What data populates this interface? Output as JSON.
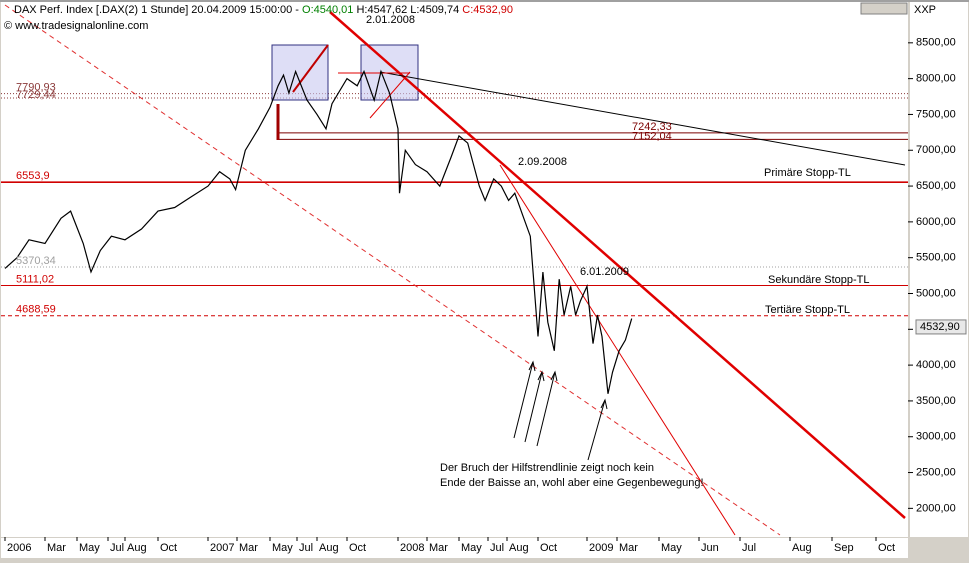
{
  "chart_data": {
    "type": "line",
    "header": {
      "title": "DAX Perf. Index [.DAX(2)  1 Stunde] 20.04.2009 15:00:00 -",
      "open": "O:4540,01",
      "high": "H:4547,62",
      "low": "L:4509,74",
      "close": "C:4532,90"
    },
    "source": "© www.tradesignalonline.com",
    "axis_name": "XXP",
    "last": {
      "value": 4532.9,
      "label": "4532,90"
    },
    "color": "#000000",
    "x": [
      0,
      0.6,
      1.2,
      2,
      3,
      3.6,
      4.4,
      4.9,
      5.5,
      6.2,
      7,
      8,
      9,
      10,
      11,
      12,
      12.8,
      13.5,
      13.9,
      14.5,
      15.3,
      16,
      16.6,
      17,
      17.4,
      17.9,
      18.5,
      19,
      19.6,
      20,
      21,
      21.6,
      22,
      22.6,
      23,
      23.5,
      24,
      24.1,
      24.5,
      25.2,
      26,
      26.8,
      27.5,
      28,
      28.6,
      29,
      29.4,
      29.8,
      30.3,
      30.7,
      31.1,
      31.5,
      32,
      32.5,
      33,
      33.3,
      33.6,
      34,
      34.3,
      34.6,
      35,
      35.3,
      35.6,
      36,
      36.4,
      36.7,
      37,
      37.4,
      37.7,
      38.1,
      38.4,
      38.7
    ],
    "values": [
      5350,
      5500,
      5750,
      5700,
      6050,
      6150,
      5700,
      5300,
      5600,
      5800,
      5750,
      5900,
      6150,
      6200,
      6350,
      6500,
      6700,
      6600,
      6450,
      7000,
      7300,
      7600,
      7900,
      8050,
      7800,
      8100,
      7700,
      7500,
      7300,
      7650,
      8000,
      7900,
      8100,
      7700,
      8100,
      7800,
      7300,
      6400,
      7000,
      6800,
      6700,
      6500,
      6900,
      7200,
      7100,
      6800,
      6500,
      6300,
      6600,
      6500,
      6300,
      6400,
      6100,
      5800,
      4400,
      5300,
      4600,
      4200,
      5200,
      4700,
      5100,
      4700,
      4900,
      5100,
      4300,
      4700,
      4400,
      3600,
      3900,
      4200,
      4350,
      4650
    ],
    "xlim": [
      0,
      46
    ],
    "xticks": [
      {
        "value": 0,
        "label": "2006"
      },
      {
        "value": 2,
        "label": "Mar"
      },
      {
        "value": 4,
        "label": "May"
      },
      {
        "value": 6,
        "label": "Jul"
      },
      {
        "value": 7,
        "label": "Aug"
      },
      {
        "value": 9,
        "label": "Oct"
      },
      {
        "value": 12,
        "label": "2007"
      },
      {
        "value": 14,
        "label": "Mar"
      },
      {
        "value": 16,
        "label": "May"
      },
      {
        "value": 18,
        "label": "Jul"
      },
      {
        "value": 19,
        "label": "Aug"
      },
      {
        "value": 21,
        "label": "Oct"
      },
      {
        "value": 24,
        "label": "2008"
      },
      {
        "value": 26,
        "label": "Mar"
      },
      {
        "value": 28,
        "label": "May"
      },
      {
        "value": 30,
        "label": "Jul"
      },
      {
        "value": 31,
        "label": "Aug"
      },
      {
        "value": 33,
        "label": "Oct"
      },
      {
        "value": 36,
        "label": "2009"
      },
      {
        "value": 38,
        "label": "Mar"
      },
      {
        "value": 40,
        "label": "May"
      },
      {
        "value": 41,
        "label": "Jun"
      },
      {
        "value": 42,
        "label": "Jul"
      },
      {
        "value": 43,
        "label": "Aug"
      },
      {
        "value": 44,
        "label": "Sep"
      },
      {
        "value": 45,
        "label": "Oct"
      }
    ],
    "ylim": [
      1600,
      9070
    ],
    "yticks": [
      {
        "value": 2000,
        "label": "2000,00"
      },
      {
        "value": 2500,
        "label": "2500,00"
      },
      {
        "value": 3000,
        "label": "3000,00"
      },
      {
        "value": 3500,
        "label": "3500,00"
      },
      {
        "value": 4000,
        "label": "4000,00"
      },
      {
        "value": 4500,
        "label": "4500,00"
      },
      {
        "value": 5000,
        "label": "5000,00"
      },
      {
        "value": 5500,
        "label": "5500,00"
      },
      {
        "value": 6000,
        "label": "6000,00"
      },
      {
        "value": 6500,
        "label": "6500,00"
      },
      {
        "value": 7000,
        "label": "7000,00"
      },
      {
        "value": 7500,
        "label": "7500,00"
      },
      {
        "value": 8000,
        "label": "8000,00"
      },
      {
        "value": 8500,
        "label": "8500,00"
      }
    ],
    "levels": [
      {
        "value": 7790.93,
        "label": "7790,93",
        "color": "#8b3a3a",
        "style": "dotted"
      },
      {
        "value": 7729.44,
        "label": "7729,44",
        "color": "#8b3a3a",
        "style": "dotted"
      },
      {
        "value": 7242.33,
        "label": "7242,33",
        "color": "#7b0000",
        "style": "solid"
      },
      {
        "value": 7152.04,
        "label": "7152,04",
        "color": "#7b0000",
        "style": "solid"
      },
      {
        "value": 6553.9,
        "label": "6553,9",
        "color": "#d00000",
        "style": "solid"
      },
      {
        "value": 5370.34,
        "label": "5370,34",
        "color": "#a0a0a0",
        "style": "dotted"
      },
      {
        "value": 5111.02,
        "label": "5111,02",
        "color": "#d00000",
        "style": "solid"
      },
      {
        "value": 4688.59,
        "label": "4688,59",
        "color": "#d00000",
        "style": "dashed"
      }
    ],
    "annotations": [
      "2.01.2008",
      "2.09.2008",
      "6.01.2009",
      "Primäre Stopp-TL",
      "Sekundäre Stopp-TL",
      "Tertiäre Stopp-TL",
      "Der Bruch der Hilfstrendlinie zeigt noch kein",
      "Ende der Baisse an, wohl aber eine Gegenbewegung!"
    ]
  }
}
